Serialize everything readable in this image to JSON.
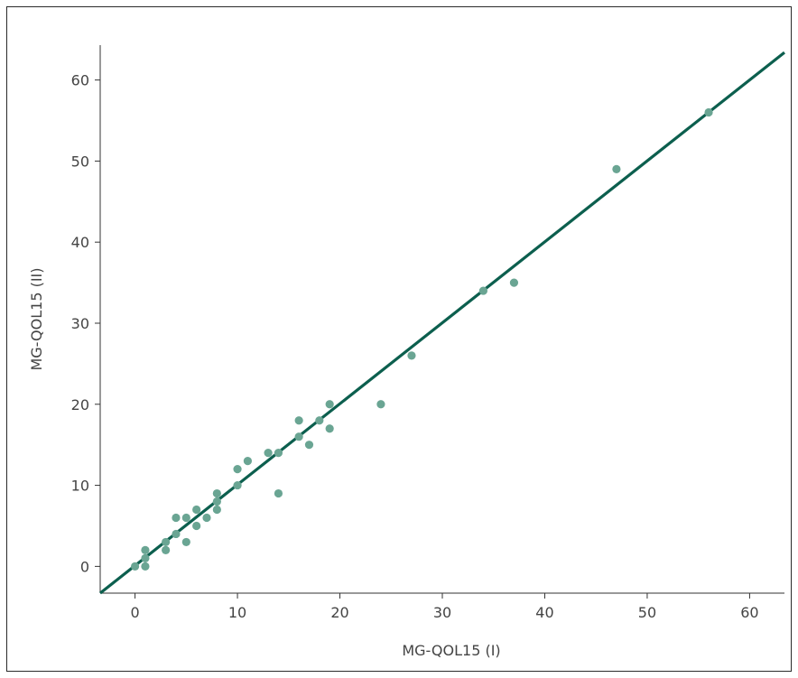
{
  "chart_data": {
    "type": "scatter",
    "title": "",
    "xlabel": "MG-QOL15 (I)",
    "ylabel": "MG-QOL15 (II)",
    "xlim": [
      -3.4,
      63.4
    ],
    "ylim": [
      -3.3,
      64.3
    ],
    "xticks": [
      0,
      10,
      20,
      30,
      40,
      50,
      60
    ],
    "yticks": [
      0,
      10,
      20,
      30,
      40,
      50,
      60
    ],
    "grid": false,
    "colors": {
      "points": "#6aa593",
      "line": "#0c5f4e",
      "axis": "#333333"
    },
    "series": [
      {
        "type": "scatter",
        "points": [
          [
            0,
            0
          ],
          [
            1,
            0
          ],
          [
            1,
            1
          ],
          [
            1,
            2
          ],
          [
            3,
            2
          ],
          [
            3,
            3
          ],
          [
            4,
            4
          ],
          [
            4,
            6
          ],
          [
            5,
            3
          ],
          [
            5,
            6
          ],
          [
            6,
            5
          ],
          [
            6,
            7
          ],
          [
            7,
            6
          ],
          [
            8,
            7
          ],
          [
            8,
            8
          ],
          [
            8,
            9
          ],
          [
            10,
            10
          ],
          [
            10,
            12
          ],
          [
            11,
            13
          ],
          [
            13,
            14
          ],
          [
            14,
            9
          ],
          [
            14,
            14
          ],
          [
            16,
            16
          ],
          [
            16,
            18
          ],
          [
            17,
            15
          ],
          [
            18,
            18
          ],
          [
            19,
            17
          ],
          [
            19,
            20
          ],
          [
            24,
            20
          ],
          [
            27,
            26
          ],
          [
            34,
            34
          ],
          [
            37,
            35
          ],
          [
            47,
            49
          ],
          [
            56,
            56
          ]
        ]
      },
      {
        "type": "line",
        "points": [
          [
            -3.4,
            -3.3
          ],
          [
            63.4,
            63.4
          ]
        ]
      }
    ]
  }
}
